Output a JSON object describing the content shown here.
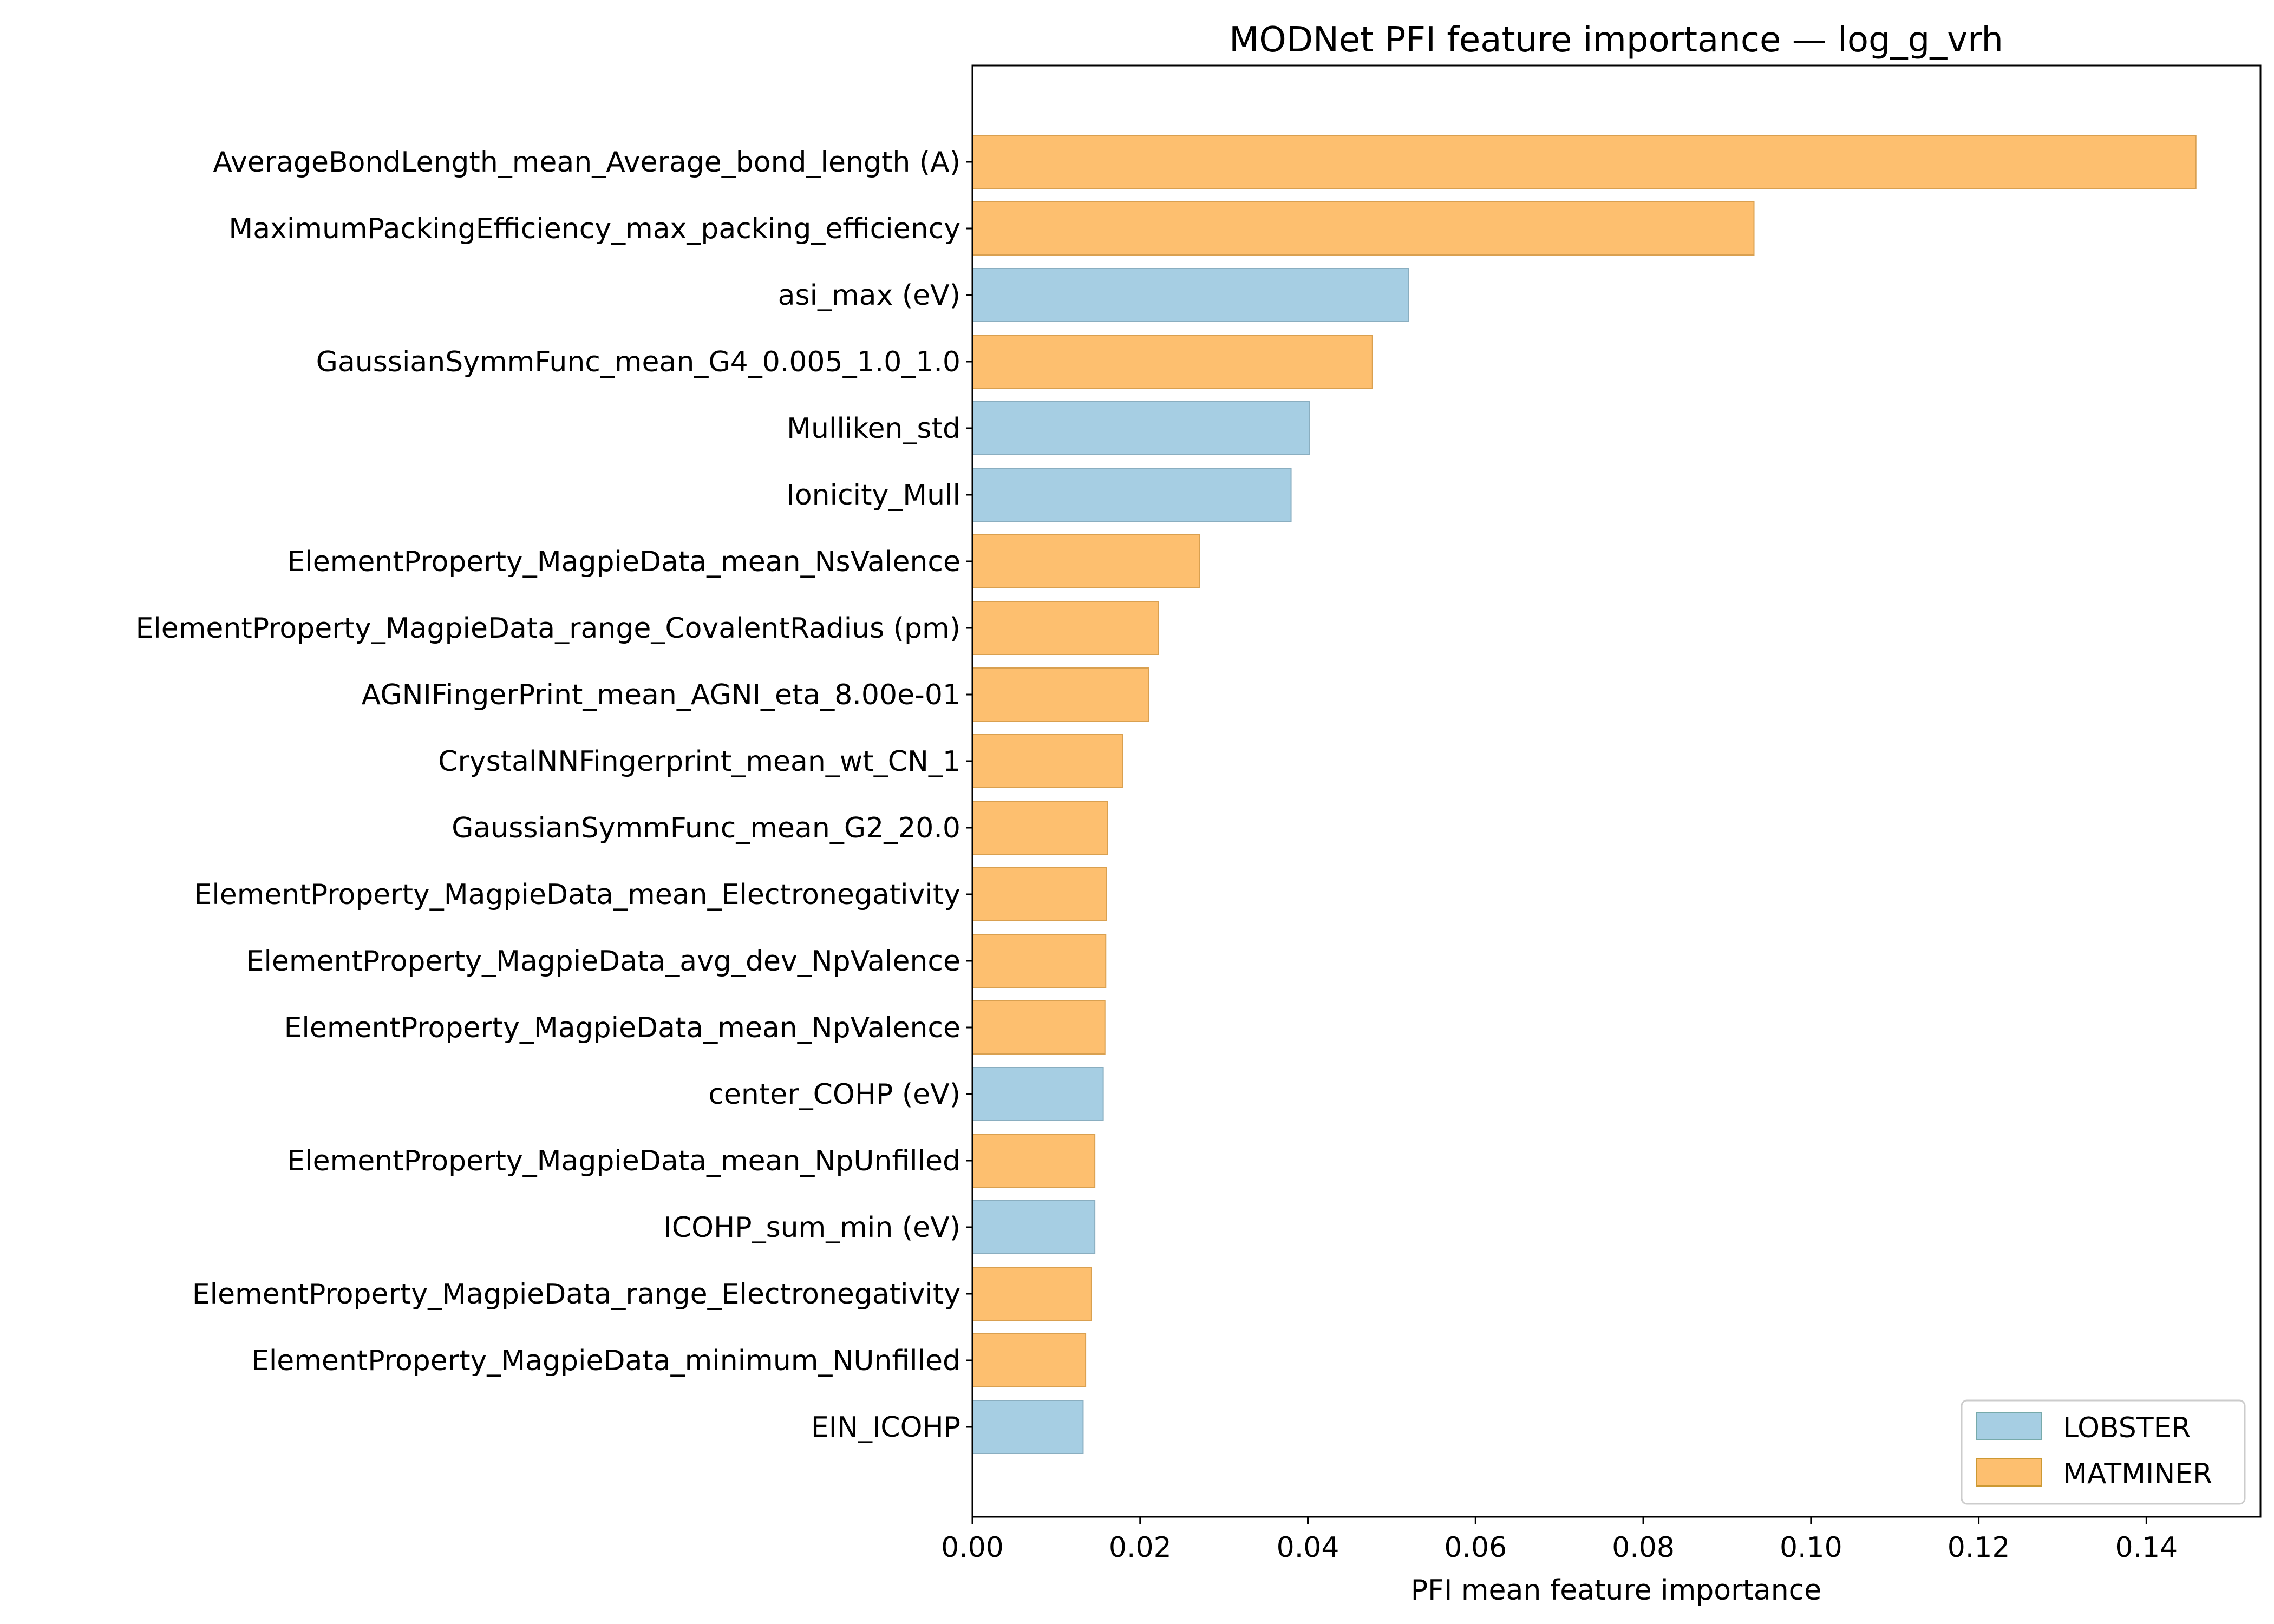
{
  "chart_data": {
    "type": "bar",
    "orientation": "horizontal",
    "title": "MODNet PFI feature importance — log_g_vrh",
    "xlabel": "PFI mean feature importance",
    "ylabel": "",
    "xlim": [
      0,
      0.1536
    ],
    "xticks": [
      "0.00",
      "0.02",
      "0.04",
      "0.06",
      "0.08",
      "0.10",
      "0.12",
      "0.14"
    ],
    "grid": false,
    "legend_position": "lower-right",
    "colors": {
      "LOBSTER": "#a6cee3",
      "MATMINER": "#fdbf6f"
    },
    "legend": [
      {
        "name": "LOBSTER",
        "color": "#a6cee3"
      },
      {
        "name": "MATMINER",
        "color": "#fdbf6f"
      }
    ],
    "bars": [
      {
        "label": "AverageBondLength_mean_Average_bond_length (A)",
        "value": 0.1459,
        "group": "MATMINER"
      },
      {
        "label": "MaximumPackingEfficiency_max_packing_efficiency",
        "value": 0.0932,
        "group": "MATMINER"
      },
      {
        "label": "asi_max (eV)",
        "value": 0.052,
        "group": "LOBSTER"
      },
      {
        "label": "GaussianSymmFunc_mean_G4_0.005_1.0_1.0",
        "value": 0.0477,
        "group": "MATMINER"
      },
      {
        "label": "Mulliken_std",
        "value": 0.0402,
        "group": "LOBSTER"
      },
      {
        "label": "Ionicity_Mull",
        "value": 0.038,
        "group": "LOBSTER"
      },
      {
        "label": "ElementProperty_MagpieData_mean_NsValence",
        "value": 0.0271,
        "group": "MATMINER"
      },
      {
        "label": "ElementProperty_MagpieData_range_CovalentRadius (pm)",
        "value": 0.0222,
        "group": "MATMINER"
      },
      {
        "label": "AGNIFingerPrint_mean_AGNI_eta_8.00e-01",
        "value": 0.021,
        "group": "MATMINER"
      },
      {
        "label": "CrystalNNFingerprint_mean_wt_CN_1",
        "value": 0.0179,
        "group": "MATMINER"
      },
      {
        "label": "GaussianSymmFunc_mean_G2_20.0",
        "value": 0.0161,
        "group": "MATMINER"
      },
      {
        "label": "ElementProperty_MagpieData_mean_Electronegativity",
        "value": 0.016,
        "group": "MATMINER"
      },
      {
        "label": "ElementProperty_MagpieData_avg_dev_NpValence",
        "value": 0.0159,
        "group": "MATMINER"
      },
      {
        "label": "ElementProperty_MagpieData_mean_NpValence",
        "value": 0.0158,
        "group": "MATMINER"
      },
      {
        "label": "center_COHP (eV)",
        "value": 0.0156,
        "group": "LOBSTER"
      },
      {
        "label": "ElementProperty_MagpieData_mean_NpUnfilled",
        "value": 0.0146,
        "group": "MATMINER"
      },
      {
        "label": "ICOHP_sum_min (eV)",
        "value": 0.0146,
        "group": "LOBSTER"
      },
      {
        "label": "ElementProperty_MagpieData_range_Electronegativity",
        "value": 0.0142,
        "group": "MATMINER"
      },
      {
        "label": "ElementProperty_MagpieData_minimum_NUnfilled",
        "value": 0.0135,
        "group": "MATMINER"
      },
      {
        "label": "EIN_ICOHP",
        "value": 0.0132,
        "group": "LOBSTER"
      }
    ]
  }
}
